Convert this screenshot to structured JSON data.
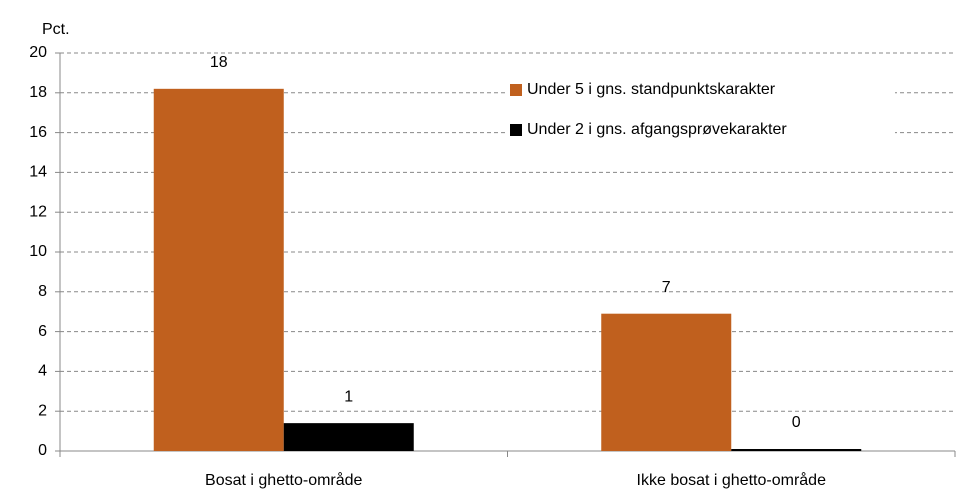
{
  "chart_data": {
    "type": "bar",
    "ylabel": "Pct.",
    "categories": [
      "Bosat i ghetto-område",
      "Ikke bosat i ghetto-område"
    ],
    "series": [
      {
        "name": "Under 5 i gns. standpunktskarakter",
        "color": "#c0601e",
        "values": [
          18.2,
          6.9
        ],
        "value_labels": [
          "18",
          "7"
        ]
      },
      {
        "name": "Under 2 i gns. afgangsprøvekarakter",
        "color": "#000000",
        "values": [
          1.4,
          0.1
        ],
        "value_labels": [
          "1",
          "0"
        ]
      }
    ],
    "ylim": [
      0,
      20
    ],
    "yticks": [
      0,
      2,
      4,
      6,
      8,
      10,
      12,
      14,
      16,
      18,
      20
    ],
    "grid": true,
    "legend": "upper right"
  }
}
